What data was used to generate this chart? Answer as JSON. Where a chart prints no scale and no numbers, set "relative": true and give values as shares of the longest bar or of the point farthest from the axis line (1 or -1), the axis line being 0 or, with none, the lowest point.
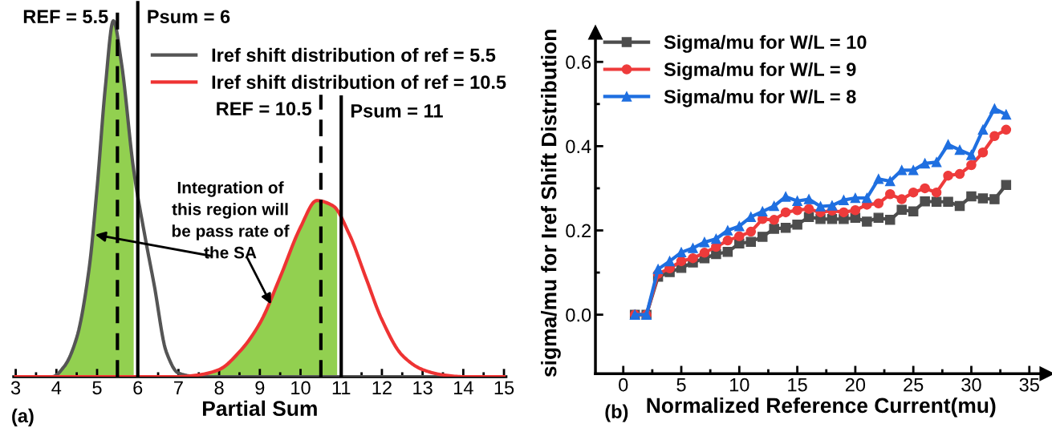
{
  "chart_data": [
    {
      "type": "line",
      "relative": true,
      "xlabel": "Partial Sum",
      "xlim": [
        2.95,
        15.05
      ],
      "xticks": [
        3,
        4,
        5,
        6,
        7,
        8,
        9,
        10,
        11,
        12,
        13,
        14,
        15
      ],
      "tick_labels": "x",
      "legend": "top right",
      "grid": false,
      "marker": "none",
      "series": [
        {
          "type": "area",
          "color": "#92d050",
          "x": [
            3.9,
            4.2,
            4.5,
            4.8,
            5.0,
            5.2,
            5.4,
            5.6,
            5.9
          ],
          "values": [
            0,
            0.03,
            0.11,
            0.3,
            0.53,
            0.81,
            1.0,
            0.88,
            0.58
          ]
        },
        {
          "type": "area",
          "color": "#92d050",
          "x": [
            7.7,
            8.0,
            8.5,
            9.0,
            9.5,
            10.0,
            10.4,
            10.9
          ],
          "values": [
            0.01,
            0.02,
            0.07,
            0.15,
            0.28,
            0.42,
            0.495,
            0.47
          ]
        },
        {
          "name": "Iref shift distribution of ref = 5.5",
          "color": "#555555",
          "x": [
            3.0,
            3.9,
            4.2,
            4.5,
            4.8,
            5.0,
            5.2,
            5.4,
            5.6,
            5.9,
            6.2,
            6.4,
            6.7,
            7.0,
            7.5,
            15.0
          ],
          "values": [
            0,
            0,
            0.03,
            0.11,
            0.3,
            0.53,
            0.81,
            1.0,
            0.88,
            0.58,
            0.38,
            0.26,
            0.07,
            0.01,
            0,
            0
          ]
        },
        {
          "name": "Iref shift distribution of ref = 10.5",
          "color": "#ee3333",
          "x": [
            3.0,
            7.0,
            7.5,
            8.0,
            8.5,
            9.0,
            9.5,
            10.0,
            10.4,
            10.8,
            11.2,
            11.6,
            12.0,
            12.5,
            13.0,
            13.5,
            14.0,
            15.0
          ],
          "values": [
            0,
            0,
            0.005,
            0.02,
            0.07,
            0.15,
            0.28,
            0.42,
            0.495,
            0.48,
            0.4,
            0.28,
            0.16,
            0.06,
            0.02,
            0.005,
            0,
            0
          ]
        }
      ],
      "ref_lines": [
        {
          "axis": "x",
          "value": 5.5,
          "label": "REF = 5.5",
          "line_style": "dashed",
          "color": "#000000"
        },
        {
          "axis": "x",
          "value": 6,
          "label": "Psum = 6",
          "line_style": "solid",
          "color": "#000000"
        },
        {
          "axis": "x",
          "value": 10.5,
          "label": "REF = 10.5",
          "line_style": "dashed",
          "color": "#000000"
        },
        {
          "axis": "x",
          "value": 11,
          "label": "Psum = 11",
          "line_style": "solid",
          "color": "#000000"
        }
      ],
      "annotations": [
        "Integration of this region will be pass rate of the SA",
        "(a)"
      ]
    },
    {
      "type": "line",
      "xlabel": "Normalized Reference Current(mu)",
      "ylabel": "sigma/mu for Iref Shift Distribution",
      "xlim": [
        -2.4,
        36.5
      ],
      "ylim": [
        -0.14,
        0.67
      ],
      "xticks": [
        0,
        5,
        10,
        15,
        20,
        25,
        30,
        35
      ],
      "yticks": [
        {
          "value": 0,
          "label": "0.0"
        },
        0.2,
        0.4,
        0.6
      ],
      "legend": "top left",
      "grid": false,
      "line_style": "solid",
      "x": [
        1,
        2,
        3,
        4,
        5,
        6,
        7,
        8,
        9,
        10,
        11,
        12,
        13,
        14,
        15,
        16,
        17,
        18,
        19,
        20,
        21,
        22,
        23,
        24,
        25,
        26,
        27,
        28,
        29,
        30,
        31,
        32,
        33
      ],
      "series": [
        {
          "name": "Sigma/mu for W/L = 10",
          "color": "#4d4d4d",
          "marker": "square",
          "values": [
            0,
            0,
            0.09,
            0.101,
            0.111,
            0.124,
            0.134,
            0.144,
            0.149,
            0.169,
            0.173,
            0.185,
            0.204,
            0.206,
            0.214,
            0.232,
            0.227,
            0.227,
            0.227,
            0.23,
            0.221,
            0.23,
            0.225,
            0.249,
            0.245,
            0.269,
            0.268,
            0.268,
            0.258,
            0.281,
            0.276,
            0.274,
            0.308
          ]
        },
        {
          "name": "Sigma/mu for W/L = 9",
          "color": "#ee3b3b",
          "marker": "circle",
          "values": [
            0,
            0,
            0.097,
            0.11,
            0.127,
            0.134,
            0.147,
            0.161,
            0.176,
            0.186,
            0.197,
            0.227,
            0.225,
            0.243,
            0.248,
            0.251,
            0.243,
            0.247,
            0.243,
            0.248,
            0.261,
            0.264,
            0.286,
            0.274,
            0.29,
            0.3,
            0.29,
            0.33,
            0.334,
            0.355,
            0.385,
            0.424,
            0.439
          ]
        },
        {
          "name": "Sigma/mu for W/L = 8",
          "color": "#1f6fe0",
          "marker": "triangle",
          "values": [
            0,
            0,
            0.108,
            0.127,
            0.148,
            0.158,
            0.172,
            0.18,
            0.2,
            0.21,
            0.232,
            0.245,
            0.258,
            0.28,
            0.27,
            0.274,
            0.257,
            0.259,
            0.272,
            0.277,
            0.277,
            0.322,
            0.317,
            0.343,
            0.343,
            0.359,
            0.362,
            0.404,
            0.391,
            0.379,
            0.439,
            0.489,
            0.475
          ]
        }
      ],
      "annotations": [
        "(b)"
      ]
    }
  ]
}
